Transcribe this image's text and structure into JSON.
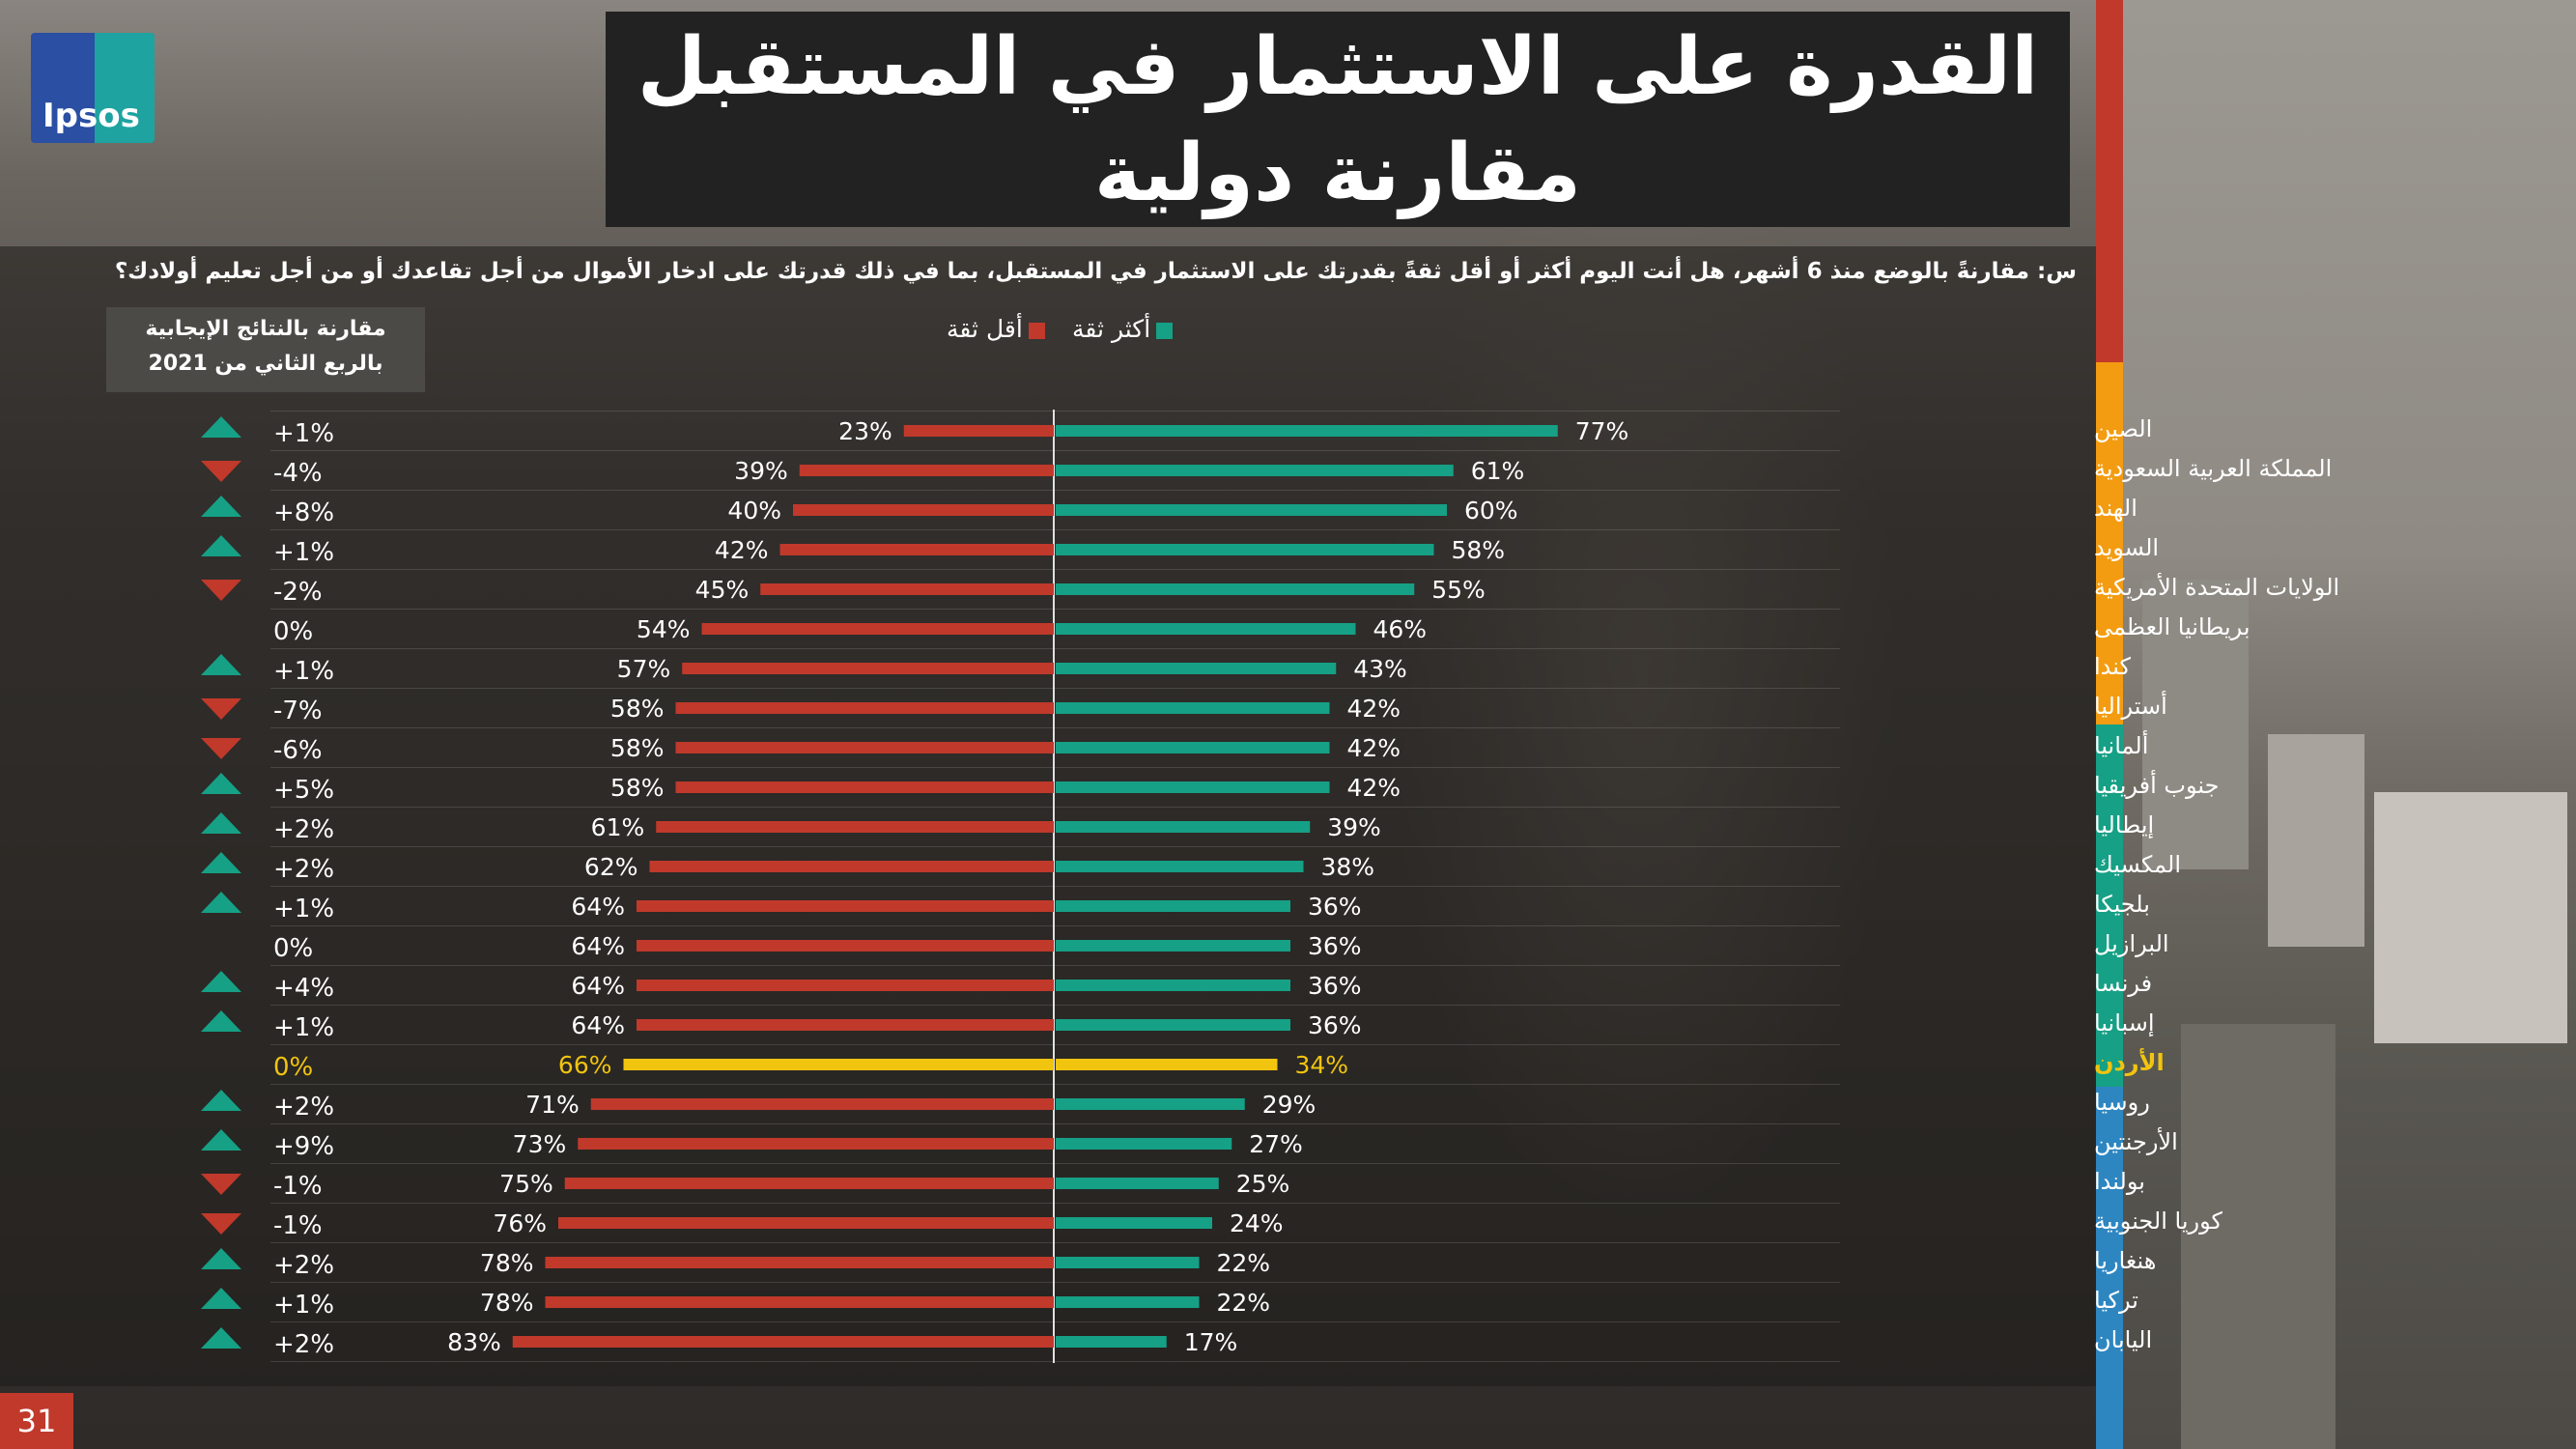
{
  "title": {
    "line1": "القدرة على الاستثمار في المستقبل",
    "line2": "مقارنة دولية"
  },
  "logo": {
    "text": "Ipsos"
  },
  "question": "س: مقارنةً بالوضع منذ 6 أشهر، هل أنت اليوم أكثر أو أقل ثقةً بقدرتك على الاستثمار في المستقبل، بما في ذلك قدرتك على ادخار الأموال من أجل تقاعدك أو من أجل تعليم أولادك؟",
  "comparison_header": {
    "line1": "مقارنة بالنتائج الإيجابية",
    "line2": "بالربع الثاني من 2021"
  },
  "page_number": "31",
  "colors": {
    "less_confident": "#c0392b",
    "more_confident": "#16a085",
    "highlight": "#f1c40f",
    "arrow_up": "#16a085",
    "arrow_down": "#c0392b",
    "stripe": [
      "#c0392b",
      "#f39c12",
      "#16a085",
      "#2e86c1"
    ]
  },
  "chart_data": {
    "type": "bar",
    "legend": [
      {
        "name": "أكثر ثقة",
        "color": "#16a085"
      },
      {
        "name": "أقل ثقة",
        "color": "#c0392b"
      }
    ],
    "categories": [
      "الصين",
      "المملكة العربية السعودية",
      "الهند",
      "السويد",
      "الولايات المتحدة الأمريكية",
      "بريطانيا العظمى",
      "كندا",
      "أستراليا",
      "ألمانيا",
      "جنوب أفريقيا",
      "إيطاليا",
      "المكسيك",
      "بلجيكا",
      "البرازيل",
      "فرنسا",
      "إسبانيا",
      "الأردن",
      "روسيا",
      "الأرجنتين",
      "بولندا",
      "كوريا الجنوبية",
      "هنغاريا",
      "تركيا",
      "اليابان"
    ],
    "series": [
      {
        "name": "أكثر ثقة",
        "values": [
          77,
          61,
          60,
          58,
          55,
          46,
          43,
          42,
          42,
          42,
          39,
          38,
          36,
          36,
          36,
          36,
          34,
          29,
          27,
          25,
          24,
          22,
          22,
          17
        ]
      },
      {
        "name": "أقل ثقة",
        "values": [
          23,
          39,
          40,
          42,
          45,
          54,
          57,
          58,
          58,
          58,
          61,
          62,
          64,
          64,
          64,
          64,
          66,
          71,
          73,
          75,
          76,
          78,
          78,
          83
        ]
      }
    ],
    "change_vs_q2_2021": [
      "+1%",
      "-4%",
      "+8%",
      "+1%",
      "-2%",
      "0%",
      "+1%",
      "-7%",
      "-6%",
      "+5%",
      "+2%",
      "+2%",
      "+1%",
      "0%",
      "+4%",
      "+1%",
      "0%",
      "+2%",
      "+9%",
      "-1%",
      "-1%",
      "+2%",
      "+1%",
      "+2%"
    ],
    "change_direction": [
      "up",
      "down",
      "up",
      "up",
      "down",
      "none",
      "up",
      "down",
      "down",
      "up",
      "up",
      "up",
      "up",
      "none",
      "up",
      "up",
      "none",
      "up",
      "up",
      "down",
      "down",
      "up",
      "up",
      "up"
    ],
    "highlight_category": "الأردن"
  }
}
